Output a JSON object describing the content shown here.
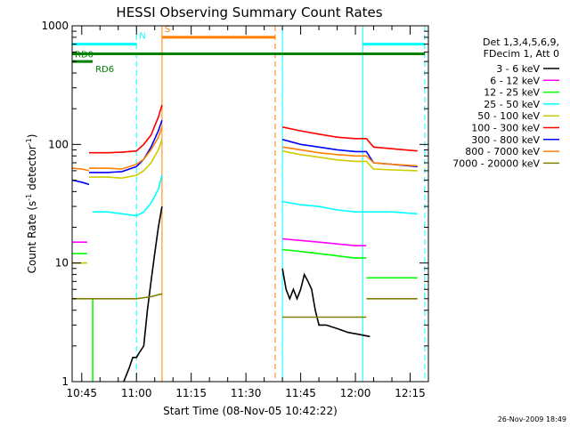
{
  "chart_data": {
    "type": "line",
    "title": "HESSI Observing Summary Count Rates",
    "xlabel": "Start Time (08-Nov-05 10:42:22)",
    "ylabel_main": "Count Rate (s",
    "ylabel_sup1": "-1",
    "ylabel_mid": " detector",
    "ylabel_sup2": "-1",
    "ylabel_end": ")",
    "y_scale": "log",
    "ylim": [
      1,
      1000
    ],
    "xlim": [
      "10:42:22",
      "12:20:00"
    ],
    "x_ticks": [
      "10:45",
      "11:00",
      "11:15",
      "11:30",
      "11:45",
      "12:00",
      "12:15"
    ],
    "y_ticks": [
      "1",
      "10",
      "100",
      "1000"
    ],
    "grid": false,
    "legend_placement": "right",
    "legend_header": [
      "Det 1,3,4,5,6,9,",
      "FDecim 1, Att 0"
    ],
    "series": [
      {
        "name": "3 - 6 keV",
        "color": "#000000",
        "segments": [
          {
            "x": [
              "10:56:30",
              "10:58",
              "10:59",
              "11:00",
              "11:01",
              "11:02",
              "11:03",
              "11:04",
              "11:05",
              "11:06",
              "11:07"
            ],
            "y": [
              1,
              1.3,
              1.6,
              1.6,
              1.8,
              2,
              4,
              7,
              12,
              20,
              30
            ]
          },
          {
            "x": [
              "11:40",
              "11:41",
              "11:42",
              "11:43",
              "11:44",
              "11:45",
              "11:46",
              "11:47",
              "11:48",
              "11:49",
              "11:50",
              "11:52",
              "11:55",
              "11:58",
              "12:01",
              "12:04"
            ],
            "y": [
              9,
              6,
              5,
              6,
              5,
              6,
              8,
              7,
              6,
              4,
              3,
              3,
              2.8,
              2.6,
              2.5,
              2.4
            ]
          }
        ]
      },
      {
        "name": "6 - 12 keV",
        "color": "#ff00ff",
        "segments": [
          {
            "x": [
              "10:42:22",
              "10:46",
              "10:46:30"
            ],
            "y": [
              15,
              15,
              15
            ]
          },
          {
            "x": [
              "11:40",
              "11:45",
              "11:50",
              "11:55",
              "12:00",
              "12:03"
            ],
            "y": [
              16,
              15.5,
              15,
              14.5,
              14,
              14
            ]
          }
        ]
      },
      {
        "name": "12 - 25 keV",
        "color": "#00ff00",
        "segments": [
          {
            "x": [
              "10:42:22",
              "10:46",
              "10:46:30"
            ],
            "y": [
              12,
              12,
              12
            ]
          },
          {
            "x": [
              "10:48",
              "10:48"
            ],
            "y": [
              1,
              5
            ]
          },
          {
            "x": [
              "11:40",
              "11:45",
              "11:50",
              "11:55",
              "12:00",
              "12:03"
            ],
            "y": [
              13,
              12.5,
              12,
              11.5,
              11,
              11
            ]
          },
          {
            "x": [
              "12:03",
              "12:08",
              "12:13",
              "12:17"
            ],
            "y": [
              7.5,
              7.5,
              7.5,
              7.5
            ]
          }
        ]
      },
      {
        "name": "25 - 50 keV",
        "color": "#00ffff",
        "segments": [
          {
            "x": [
              "10:48",
              "10:52",
              "10:56",
              "11:00",
              "11:02",
              "11:04",
              "11:06",
              "11:07"
            ],
            "y": [
              27,
              27,
              26,
              25,
              27,
              32,
              42,
              55
            ]
          },
          {
            "x": [
              "11:40",
              "11:45",
              "11:50",
              "11:55",
              "12:00",
              "12:05",
              "12:10",
              "12:17"
            ],
            "y": [
              33,
              31,
              30,
              28,
              27,
              27,
              27,
              26
            ]
          }
        ]
      },
      {
        "name": "50 - 100 keV",
        "color": "#cccc00",
        "segments": [
          {
            "x": [
              "10:42:22",
              "10:46",
              "10:46:30"
            ],
            "y": [
              10,
              10,
              10
            ]
          },
          {
            "x": [
              "10:47",
              "10:52",
              "10:56",
              "11:00",
              "11:02",
              "11:04",
              "11:06",
              "11:07"
            ],
            "y": [
              53,
              53,
              52,
              55,
              60,
              70,
              90,
              110
            ]
          },
          {
            "x": [
              "11:40",
              "11:45",
              "11:50",
              "11:55",
              "12:00",
              "12:03",
              "12:05",
              "12:10",
              "12:17"
            ],
            "y": [
              88,
              82,
              78,
              74,
              72,
              72,
              62,
              61,
              60
            ]
          }
        ]
      },
      {
        "name": "100 - 300 keV",
        "color": "#ff0000",
        "segments": [
          {
            "x": [
              "10:47",
              "10:52",
              "10:56",
              "11:00",
              "11:02",
              "11:04",
              "11:06",
              "11:07"
            ],
            "y": [
              85,
              85,
              86,
              88,
              100,
              120,
              170,
              215
            ]
          },
          {
            "x": [
              "11:40",
              "11:45",
              "11:50",
              "11:55",
              "12:00",
              "12:03",
              "12:05",
              "12:10",
              "12:17"
            ],
            "y": [
              140,
              130,
              122,
              115,
              112,
              112,
              95,
              92,
              88
            ]
          }
        ]
      },
      {
        "name": "300 - 800 keV",
        "color": "#0000ff",
        "segments": [
          {
            "x": [
              "10:42:22",
              "10:45",
              "10:47"
            ],
            "y": [
              50,
              48,
              46
            ]
          },
          {
            "x": [
              "10:47",
              "10:52",
              "10:56",
              "11:00",
              "11:02",
              "11:04",
              "11:06",
              "11:07"
            ],
            "y": [
              58,
              58,
              59,
              65,
              75,
              95,
              130,
              160
            ]
          },
          {
            "x": [
              "11:40",
              "11:45",
              "11:50",
              "11:55",
              "12:00",
              "12:03",
              "12:05",
              "12:10",
              "12:17"
            ],
            "y": [
              110,
              100,
              95,
              90,
              87,
              87,
              70,
              68,
              65
            ]
          }
        ]
      },
      {
        "name": "800 - 7000 keV",
        "color": "#ff8000",
        "segments": [
          {
            "x": [
              "10:42:22",
              "10:45",
              "10:47"
            ],
            "y": [
              63,
              62,
              60
            ]
          },
          {
            "x": [
              "10:47",
              "10:52",
              "10:56",
              "11:00",
              "11:02",
              "11:04",
              "11:06",
              "11:07"
            ],
            "y": [
              63,
              63,
              62,
              68,
              75,
              90,
              115,
              140
            ]
          },
          {
            "x": [
              "11:40",
              "11:45",
              "11:50",
              "11:55",
              "12:00",
              "12:03",
              "12:05",
              "12:10",
              "12:17"
            ],
            "y": [
              95,
              90,
              85,
              82,
              80,
              80,
              70,
              68,
              66
            ]
          }
        ]
      },
      {
        "name": "7000 - 20000 keV",
        "color": "#808000",
        "segments": [
          {
            "x": [
              "10:42:22",
              "10:46",
              "10:48",
              "10:52",
              "10:56",
              "11:00",
              "11:04",
              "11:07"
            ],
            "y": [
              5,
              5,
              5,
              5,
              5,
              5,
              5.2,
              5.5
            ]
          },
          {
            "x": [
              "11:40",
              "11:45",
              "11:50",
              "11:55",
              "12:00",
              "12:03"
            ],
            "y": [
              3.5,
              3.5,
              3.5,
              3.5,
              3.5,
              3.5
            ]
          },
          {
            "x": [
              "12:03",
              "12:08",
              "12:13",
              "12:17"
            ],
            "y": [
              5,
              5,
              5,
              5
            ]
          }
        ]
      }
    ],
    "markers": {
      "vertical_lines": [
        {
          "x": "10:42:22",
          "color": "#00ffff",
          "style": "solid"
        },
        {
          "x": "11:00",
          "color": "#00ffff",
          "style": "dashed"
        },
        {
          "x": "11:07",
          "color": "#ff8000",
          "style": "solid"
        },
        {
          "x": "11:38",
          "color": "#ff8000",
          "style": "dashed"
        },
        {
          "x": "11:40",
          "color": "#00ffff",
          "style": "solid"
        },
        {
          "x": "12:02",
          "color": "#00ffff",
          "style": "solid"
        },
        {
          "x": "12:19",
          "color": "#00ffff",
          "style": "dashed"
        }
      ],
      "horizontal_bars": [
        {
          "x1": "10:42:22",
          "x2": "11:00",
          "y": 700,
          "color": "#00ffff",
          "label": "N",
          "label_x": "11:00"
        },
        {
          "x1": "12:02",
          "x2": "12:19",
          "y": 700,
          "color": "#00ffff",
          "label": "",
          "label_x": "12:02"
        },
        {
          "x1": "11:07",
          "x2": "11:38",
          "y": 800,
          "color": "#ff8000",
          "label": "S",
          "label_x": "11:07"
        },
        {
          "x1": "10:42:22",
          "x2": "12:19",
          "y": 580,
          "color": "#008000",
          "label": "RD0",
          "label_x": "10:42:22"
        },
        {
          "x1": "10:42:22",
          "x2": "10:48",
          "y": 500,
          "color": "#008000",
          "label": "RD6",
          "label_x": "10:48"
        }
      ]
    }
  },
  "footer_stamp": "26-Nov-2009 18:49"
}
